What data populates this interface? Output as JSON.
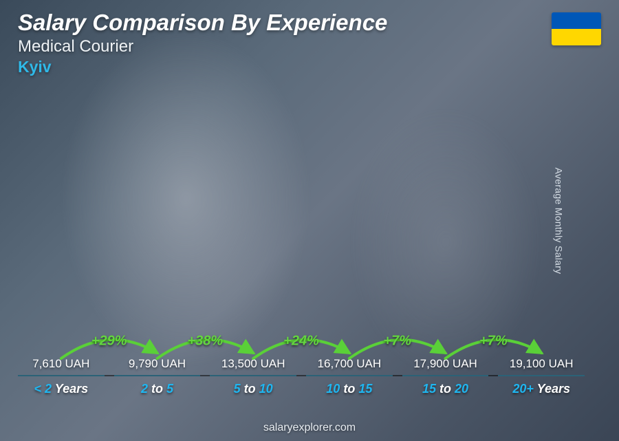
{
  "header": {
    "title": "Salary Comparison By Experience",
    "subtitle": "Medical Courier",
    "location": "Kyiv",
    "location_color": "#2fb9e8"
  },
  "flag": {
    "top_color": "#0057b7",
    "bottom_color": "#ffd700"
  },
  "yaxis_label": "Average Monthly Salary",
  "footer": "salaryexplorer.com",
  "chart": {
    "type": "bar",
    "bar_color": "#1fb0ea",
    "category_accent_color": "#1fb6f0",
    "max_value": 20500,
    "arc_color": "#5ad038",
    "arc_stroke_width": 4,
    "bars": [
      {
        "category_html": "<span class='num'>&lt; 2</span> <span class='word'>Years</span>",
        "value": 7610,
        "label": "7,610 UAH"
      },
      {
        "category_html": "<span class='num'>2</span> <span class='word'>to</span> <span class='num'>5</span>",
        "value": 9790,
        "label": "9,790 UAH"
      },
      {
        "category_html": "<span class='num'>5</span> <span class='word'>to</span> <span class='num'>10</span>",
        "value": 13500,
        "label": "13,500 UAH"
      },
      {
        "category_html": "<span class='num'>10</span> <span class='word'>to</span> <span class='num'>15</span>",
        "value": 16700,
        "label": "16,700 UAH"
      },
      {
        "category_html": "<span class='num'>15</span> <span class='word'>to</span> <span class='num'>20</span>",
        "value": 17900,
        "label": "17,900 UAH"
      },
      {
        "category_html": "<span class='num'>20+</span> <span class='word'>Years</span>",
        "value": 19100,
        "label": "19,100 UAH"
      }
    ],
    "deltas": [
      {
        "between": [
          0,
          1
        ],
        "label": "+29%"
      },
      {
        "between": [
          1,
          2
        ],
        "label": "+38%"
      },
      {
        "between": [
          2,
          3
        ],
        "label": "+24%"
      },
      {
        "between": [
          3,
          4
        ],
        "label": "+7%"
      },
      {
        "between": [
          4,
          5
        ],
        "label": "+7%"
      }
    ]
  }
}
